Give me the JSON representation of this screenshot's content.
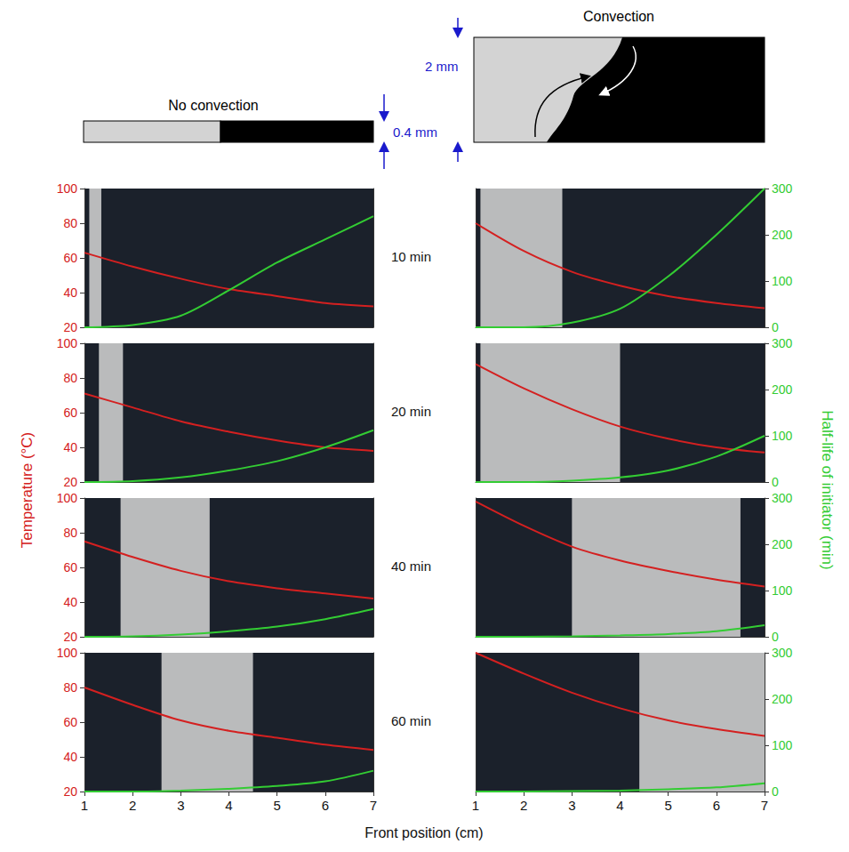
{
  "chart_data": {
    "type": "line",
    "x_label": "Front position (cm)",
    "y_label": "Temperature (°C)",
    "y2_label": "Half-life of initiator (min)",
    "x": [
      1,
      2,
      3,
      4,
      5,
      6,
      7
    ],
    "xlim": [
      1,
      7
    ],
    "xticks": [
      1,
      2,
      3,
      4,
      5,
      6,
      7
    ],
    "ylim": [
      20,
      100
    ],
    "yticks": [
      20,
      40,
      60,
      80,
      100
    ],
    "y2lim": [
      0,
      300
    ],
    "y2ticks": [
      0,
      100,
      200,
      300
    ],
    "grid": false,
    "columns": [
      {
        "title": "No convection",
        "thickness": "0.4 mm"
      },
      {
        "title": "Convection",
        "thickness": "2 mm"
      }
    ],
    "rows": [
      {
        "time": "10 min",
        "panels": [
          {
            "bright_region": [
              1.1,
              1.35
            ],
            "series": [
              {
                "color": "#d42020",
                "axis": "y",
                "values": [
                  63,
                  55,
                  48,
                  42,
                  38,
                  34,
                  32
                ]
              },
              {
                "color": "#33cc33",
                "axis": "y2",
                "values": [
                  0,
                  5,
                  25,
                  80,
                  140,
                  190,
                  240
                ]
              }
            ]
          },
          {
            "bright_region": [
              1.1,
              2.8
            ],
            "series": [
              {
                "color": "#d42020",
                "axis": "y",
                "values": [
                  80,
                  64,
                  52,
                  44,
                  38,
                  34,
                  31
                ]
              },
              {
                "color": "#33cc33",
                "axis": "y2",
                "values": [
                  0,
                  0,
                  10,
                  40,
                  110,
                  200,
                  300
                ]
              }
            ]
          }
        ]
      },
      {
        "time": "20 min",
        "panels": [
          {
            "bright_region": [
              1.3,
              1.8
            ],
            "series": [
              {
                "color": "#d42020",
                "axis": "y",
                "values": [
                  71,
                  63,
                  55,
                  49,
                  44,
                  40,
                  38
                ]
              },
              {
                "color": "#33cc33",
                "axis": "y2",
                "values": [
                  0,
                  2,
                  10,
                  25,
                  45,
                  75,
                  112
                ]
              }
            ]
          },
          {
            "bright_region": [
              1.1,
              4.0
            ],
            "series": [
              {
                "color": "#d42020",
                "axis": "y",
                "values": [
                  88,
                  74,
                  62,
                  52,
                  45,
                  40,
                  37
                ]
              },
              {
                "color": "#33cc33",
                "axis": "y2",
                "values": [
                  0,
                  0,
                  3,
                  10,
                  25,
                  55,
                  100
                ]
              }
            ]
          }
        ]
      },
      {
        "time": "40 min",
        "panels": [
          {
            "bright_region": [
              1.75,
              3.6
            ],
            "series": [
              {
                "color": "#d42020",
                "axis": "y",
                "values": [
                  75,
                  66,
                  58,
                  52,
                  48,
                  45,
                  42
                ]
              },
              {
                "color": "#33cc33",
                "axis": "y2",
                "values": [
                  0,
                  1,
                  5,
                  12,
                  22,
                  38,
                  60
                ]
              }
            ]
          },
          {
            "bright_region": [
              3.0,
              6.5
            ],
            "series": [
              {
                "color": "#d42020",
                "axis": "y",
                "values": [
                  98,
                  84,
                  72,
                  64,
                  58,
                  53,
                  49
                ]
              },
              {
                "color": "#33cc33",
                "axis": "y2",
                "values": [
                  0,
                  0,
                  1,
                  3,
                  6,
                  12,
                  25
                ]
              }
            ]
          }
        ]
      },
      {
        "time": "60 min",
        "panels": [
          {
            "bright_region": [
              2.6,
              4.5
            ],
            "series": [
              {
                "color": "#d42020",
                "axis": "y",
                "values": [
                  80,
                  70,
                  61,
                  55,
                  51,
                  47,
                  44
                ]
              },
              {
                "color": "#33cc33",
                "axis": "y2",
                "values": [
                  0,
                  0,
                  2,
                  6,
                  12,
                  22,
                  45
                ]
              }
            ]
          },
          {
            "bright_region": [
              4.4,
              7.0
            ],
            "series": [
              {
                "color": "#d42020",
                "axis": "y",
                "values": [
                  100,
                  88,
                  77,
                  68,
                  61,
                  56,
                  52
                ]
              },
              {
                "color": "#33cc33",
                "axis": "y2",
                "values": [
                  0,
                  0,
                  1,
                  2,
                  5,
                  9,
                  18
                ]
              }
            ]
          }
        ]
      }
    ]
  }
}
